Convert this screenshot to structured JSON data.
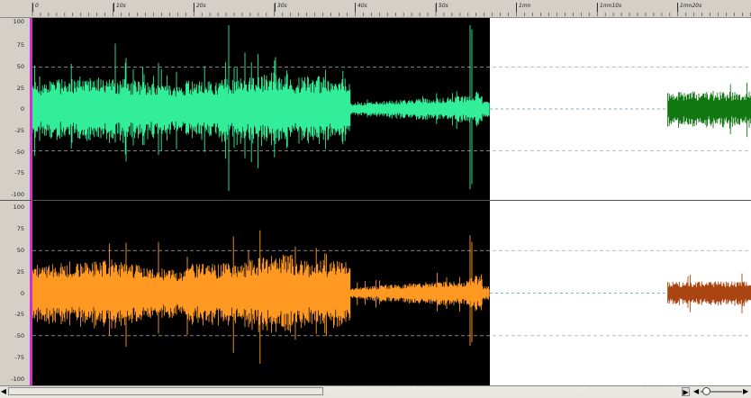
{
  "timeline": {
    "labels": [
      "0",
      "10s",
      "20s",
      "30s",
      "40s",
      "50s",
      "1mn",
      "1mn10s",
      "1mn20s"
    ]
  },
  "channels": [
    {
      "id": "ch1",
      "amp_labels": [
        "100",
        "75",
        "50",
        "25",
        "0",
        "-25",
        "-50",
        "-75",
        "-100"
      ],
      "color_active": "#33ee99",
      "color_inactive": "#117711"
    },
    {
      "id": "ch2",
      "amp_labels": [
        "100",
        "75",
        "50",
        "25",
        "0",
        "-25",
        "-50",
        "-75",
        "-100"
      ],
      "color_active": "#ff9922",
      "color_inactive": "#aa4411"
    }
  ],
  "colors": {
    "background_active": "#000000",
    "background_inactive": "#ffffff",
    "marker": "#cc33cc",
    "gridline": "#aaaaaa"
  },
  "scrollbar": {
    "left_arrow": "◀",
    "right_arrow": "▶",
    "zoom_out": "◀",
    "zoom_in": "▶"
  }
}
